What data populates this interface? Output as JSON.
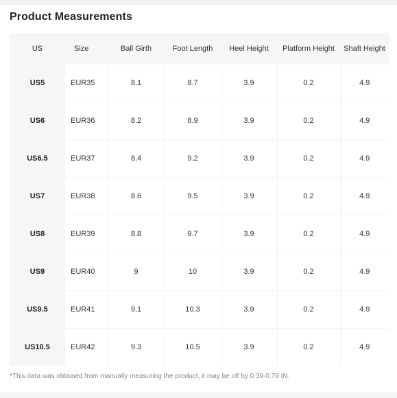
{
  "title": "Product Measurements",
  "table": {
    "headers": [
      "US",
      "Size",
      "Ball Girth",
      "Foot Length",
      "Heel Height",
      "Platform Height",
      "Shaft Height"
    ],
    "rows": [
      [
        "US5",
        "EUR35",
        "8.1",
        "8.7",
        "3.9",
        "0.2",
        "4.9"
      ],
      [
        "US6",
        "EUR36",
        "8.2",
        "8.9",
        "3.9",
        "0.2",
        "4.9"
      ],
      [
        "US6.5",
        "EUR37",
        "8.4",
        "9.2",
        "3.9",
        "0.2",
        "4.9"
      ],
      [
        "US7",
        "EUR38",
        "8.6",
        "9.5",
        "3.9",
        "0.2",
        "4.9"
      ],
      [
        "US8",
        "EUR39",
        "8.8",
        "9.7",
        "3.9",
        "0.2",
        "4.9"
      ],
      [
        "US9",
        "EUR40",
        "9",
        "10",
        "3.9",
        "0.2",
        "4.9"
      ],
      [
        "US9.5",
        "EUR41",
        "9.1",
        "10.3",
        "3.9",
        "0.2",
        "4.9"
      ],
      [
        "US10.5",
        "EUR42",
        "9.3",
        "10.5",
        "3.9",
        "0.2",
        "4.9"
      ]
    ]
  },
  "footnote": "*This data was obtained from manually measuring the product, it may be off by 0.39-0.79 IN.",
  "colors": {
    "header_background": "#f6f6f6",
    "text": "#333333",
    "footnote_text": "#888888"
  }
}
